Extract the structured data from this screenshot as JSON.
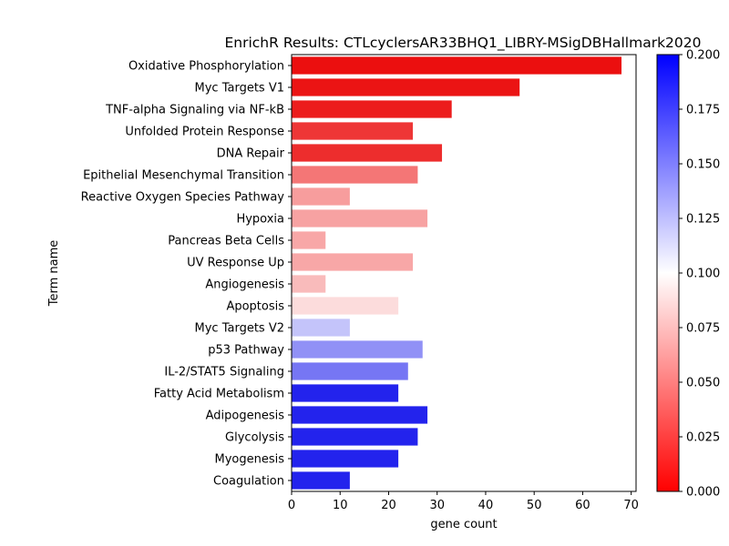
{
  "chart_data": {
    "type": "bar",
    "orientation": "horizontal",
    "title": "EnrichR Results: CTLcyclersAR33BHQ1_LIBRY-MSigDBHallmark2020",
    "xlabel": "gene count",
    "ylabel": "Term name",
    "xlim": [
      0,
      71
    ],
    "xticks": [
      0,
      10,
      20,
      30,
      40,
      50,
      60,
      70
    ],
    "grid": false,
    "categories": [
      "Oxidative Phosphorylation",
      "Myc Targets V1",
      "TNF-alpha Signaling via NF-kB",
      "Unfolded Protein Response",
      "DNA Repair",
      "Epithelial Mesenchymal Transition",
      "Reactive Oxygen Species Pathway",
      "Hypoxia",
      "Pancreas Beta Cells",
      "UV Response Up",
      "Angiogenesis",
      "Apoptosis",
      "Myc Targets V2",
      "p53 Pathway",
      "IL-2/STAT5 Signaling",
      "Fatty Acid Metabolism",
      "Adipogenesis",
      "Glycolysis",
      "Myogenesis",
      "Coagulation"
    ],
    "values": [
      68,
      47,
      33,
      25,
      31,
      26,
      12,
      28,
      7,
      25,
      7,
      22,
      12,
      27,
      24,
      22,
      28,
      26,
      22,
      12
    ],
    "color_values": [
      0.002,
      0.004,
      0.008,
      0.018,
      0.014,
      0.044,
      0.06,
      0.062,
      0.064,
      0.064,
      0.072,
      0.086,
      0.124,
      0.145,
      0.156,
      0.19,
      0.19,
      0.19,
      0.19,
      0.19
    ],
    "colorbar": {
      "colormap": "bwr_r",
      "low_color": "#ff0000",
      "mid_color": "#ffffff",
      "high_color": "#0000ff",
      "range": [
        0.0,
        0.2
      ],
      "ticks": [
        "0.000",
        "0.025",
        "0.050",
        "0.075",
        "0.100",
        "0.125",
        "0.150",
        "0.175",
        "0.200"
      ]
    }
  }
}
